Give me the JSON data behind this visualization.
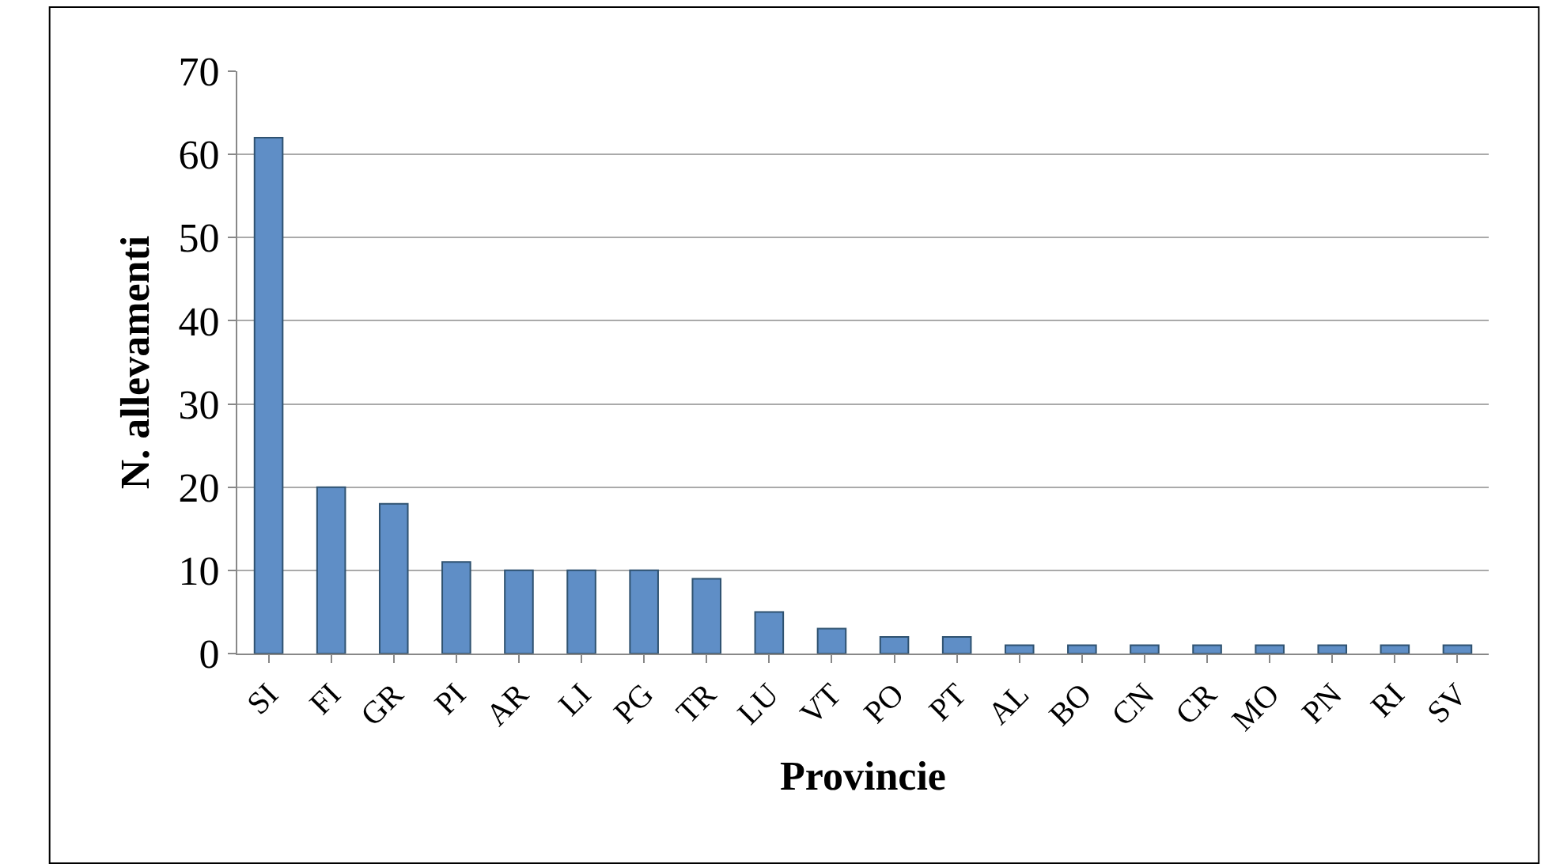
{
  "chart_data": {
    "type": "bar",
    "xlabel": "Provincie",
    "ylabel": "N. allevamenti",
    "categories": [
      "SI",
      "FI",
      "GR",
      "PI",
      "AR",
      "LI",
      "PG",
      "TR",
      "LU",
      "VT",
      "PO",
      "PT",
      "AL",
      "BO",
      "CN",
      "CR",
      "MO",
      "PN",
      "RI",
      "SV"
    ],
    "values": [
      62,
      20,
      18,
      11,
      10,
      10,
      10,
      9,
      5,
      3,
      2,
      2,
      1,
      1,
      1,
      1,
      1,
      1,
      1,
      1
    ],
    "color": "#5f8ec6",
    "ylim": [
      0,
      70
    ],
    "yticks": [
      0,
      10,
      20,
      30,
      40,
      50,
      60,
      70
    ],
    "grid": "y"
  }
}
